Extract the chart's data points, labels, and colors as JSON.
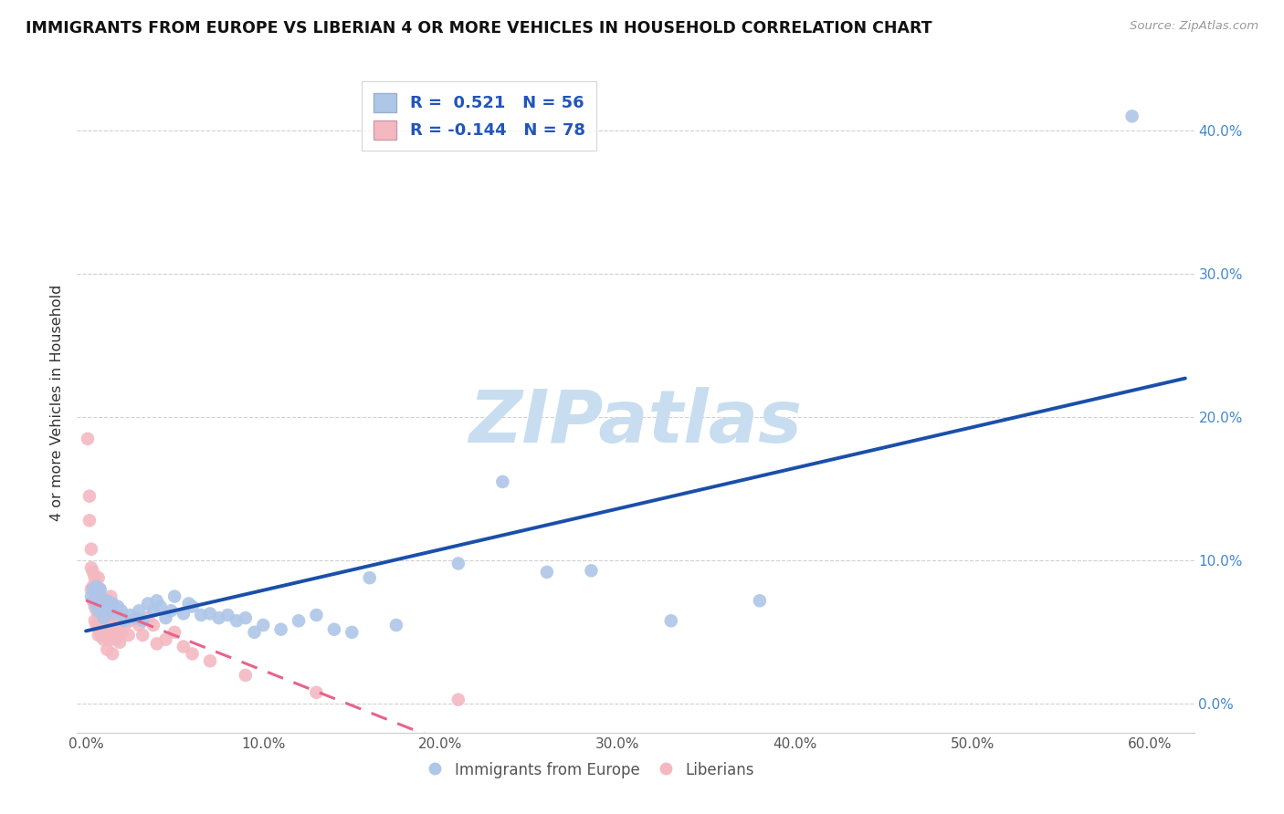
{
  "title": "IMMIGRANTS FROM EUROPE VS LIBERIAN 4 OR MORE VEHICLES IN HOUSEHOLD CORRELATION CHART",
  "source": "Source: ZipAtlas.com",
  "ylabel": "4 or more Vehicles in Household",
  "ytick_labels": [
    "0.0%",
    "10.0%",
    "20.0%",
    "30.0%",
    "40.0%"
  ],
  "ytick_values": [
    0.0,
    0.1,
    0.2,
    0.3,
    0.4
  ],
  "xtick_labels": [
    "0.0%",
    "10.0%",
    "20.0%",
    "30.0%",
    "40.0%",
    "50.0%",
    "60.0%"
  ],
  "xtick_values": [
    0.0,
    0.1,
    0.2,
    0.3,
    0.4,
    0.5,
    0.6
  ],
  "xlim": [
    -0.005,
    0.625
  ],
  "ylim": [
    -0.02,
    0.44
  ],
  "legend_entries": [
    {
      "label": "R =  0.521   N = 56",
      "color": "#aec6e8"
    },
    {
      "label": "R = -0.144   N = 78",
      "color": "#f4b8c1"
    }
  ],
  "legend_label_blue": "Immigrants from Europe",
  "legend_label_pink": "Liberians",
  "blue_scatter_color": "#aec6e8",
  "pink_scatter_color": "#f4b8c1",
  "blue_line_color": "#1a4faa",
  "pink_line_color": "#e8638a",
  "blue_scatter": [
    [
      0.003,
      0.075
    ],
    [
      0.004,
      0.08
    ],
    [
      0.005,
      0.078
    ],
    [
      0.005,
      0.072
    ],
    [
      0.006,
      0.082
    ],
    [
      0.006,
      0.068
    ],
    [
      0.007,
      0.075
    ],
    [
      0.007,
      0.065
    ],
    [
      0.008,
      0.08
    ],
    [
      0.008,
      0.07
    ],
    [
      0.009,
      0.073
    ],
    [
      0.01,
      0.068
    ],
    [
      0.01,
      0.06
    ],
    [
      0.012,
      0.072
    ],
    [
      0.013,
      0.065
    ],
    [
      0.015,
      0.07
    ],
    [
      0.016,
      0.063
    ],
    [
      0.018,
      0.068
    ],
    [
      0.02,
      0.065
    ],
    [
      0.022,
      0.058
    ],
    [
      0.025,
      0.062
    ],
    [
      0.028,
      0.06
    ],
    [
      0.03,
      0.065
    ],
    [
      0.032,
      0.058
    ],
    [
      0.035,
      0.07
    ],
    [
      0.038,
      0.065
    ],
    [
      0.04,
      0.072
    ],
    [
      0.042,
      0.068
    ],
    [
      0.045,
      0.06
    ],
    [
      0.048,
      0.065
    ],
    [
      0.05,
      0.075
    ],
    [
      0.055,
      0.063
    ],
    [
      0.058,
      0.07
    ],
    [
      0.06,
      0.068
    ],
    [
      0.065,
      0.062
    ],
    [
      0.07,
      0.063
    ],
    [
      0.075,
      0.06
    ],
    [
      0.08,
      0.062
    ],
    [
      0.085,
      0.058
    ],
    [
      0.09,
      0.06
    ],
    [
      0.095,
      0.05
    ],
    [
      0.1,
      0.055
    ],
    [
      0.11,
      0.052
    ],
    [
      0.12,
      0.058
    ],
    [
      0.13,
      0.062
    ],
    [
      0.14,
      0.052
    ],
    [
      0.15,
      0.05
    ],
    [
      0.16,
      0.088
    ],
    [
      0.175,
      0.055
    ],
    [
      0.21,
      0.098
    ],
    [
      0.235,
      0.155
    ],
    [
      0.26,
      0.092
    ],
    [
      0.285,
      0.093
    ],
    [
      0.33,
      0.058
    ],
    [
      0.38,
      0.072
    ],
    [
      0.59,
      0.41
    ]
  ],
  "pink_scatter": [
    [
      0.001,
      0.185
    ],
    [
      0.002,
      0.145
    ],
    [
      0.002,
      0.128
    ],
    [
      0.003,
      0.108
    ],
    [
      0.003,
      0.095
    ],
    [
      0.003,
      0.08
    ],
    [
      0.004,
      0.092
    ],
    [
      0.004,
      0.082
    ],
    [
      0.004,
      0.072
    ],
    [
      0.005,
      0.088
    ],
    [
      0.005,
      0.078
    ],
    [
      0.005,
      0.068
    ],
    [
      0.005,
      0.058
    ],
    [
      0.006,
      0.082
    ],
    [
      0.006,
      0.075
    ],
    [
      0.006,
      0.065
    ],
    [
      0.006,
      0.055
    ],
    [
      0.007,
      0.088
    ],
    [
      0.007,
      0.078
    ],
    [
      0.007,
      0.068
    ],
    [
      0.007,
      0.058
    ],
    [
      0.007,
      0.048
    ],
    [
      0.008,
      0.08
    ],
    [
      0.008,
      0.072
    ],
    [
      0.008,
      0.062
    ],
    [
      0.008,
      0.052
    ],
    [
      0.009,
      0.075
    ],
    [
      0.009,
      0.068
    ],
    [
      0.009,
      0.058
    ],
    [
      0.009,
      0.048
    ],
    [
      0.01,
      0.072
    ],
    [
      0.01,
      0.063
    ],
    [
      0.01,
      0.055
    ],
    [
      0.01,
      0.045
    ],
    [
      0.011,
      0.07
    ],
    [
      0.011,
      0.06
    ],
    [
      0.011,
      0.05
    ],
    [
      0.012,
      0.068
    ],
    [
      0.012,
      0.058
    ],
    [
      0.012,
      0.048
    ],
    [
      0.012,
      0.038
    ],
    [
      0.013,
      0.065
    ],
    [
      0.013,
      0.055
    ],
    [
      0.013,
      0.045
    ],
    [
      0.014,
      0.075
    ],
    [
      0.014,
      0.062
    ],
    [
      0.014,
      0.052
    ],
    [
      0.015,
      0.07
    ],
    [
      0.015,
      0.06
    ],
    [
      0.015,
      0.048
    ],
    [
      0.015,
      0.035
    ],
    [
      0.016,
      0.062
    ],
    [
      0.016,
      0.052
    ],
    [
      0.017,
      0.058
    ],
    [
      0.017,
      0.045
    ],
    [
      0.018,
      0.06
    ],
    [
      0.018,
      0.05
    ],
    [
      0.019,
      0.055
    ],
    [
      0.019,
      0.043
    ],
    [
      0.02,
      0.062
    ],
    [
      0.02,
      0.05
    ],
    [
      0.022,
      0.055
    ],
    [
      0.024,
      0.048
    ],
    [
      0.025,
      0.058
    ],
    [
      0.028,
      0.06
    ],
    [
      0.03,
      0.055
    ],
    [
      0.032,
      0.048
    ],
    [
      0.035,
      0.06
    ],
    [
      0.038,
      0.055
    ],
    [
      0.04,
      0.042
    ],
    [
      0.045,
      0.045
    ],
    [
      0.05,
      0.05
    ],
    [
      0.055,
      0.04
    ],
    [
      0.06,
      0.035
    ],
    [
      0.07,
      0.03
    ],
    [
      0.09,
      0.02
    ],
    [
      0.13,
      0.008
    ],
    [
      0.21,
      0.003
    ]
  ],
  "watermark": "ZIPatlas",
  "watermark_color": "#c8ddf0",
  "background_color": "#ffffff",
  "grid_color": "#d0d0d0"
}
